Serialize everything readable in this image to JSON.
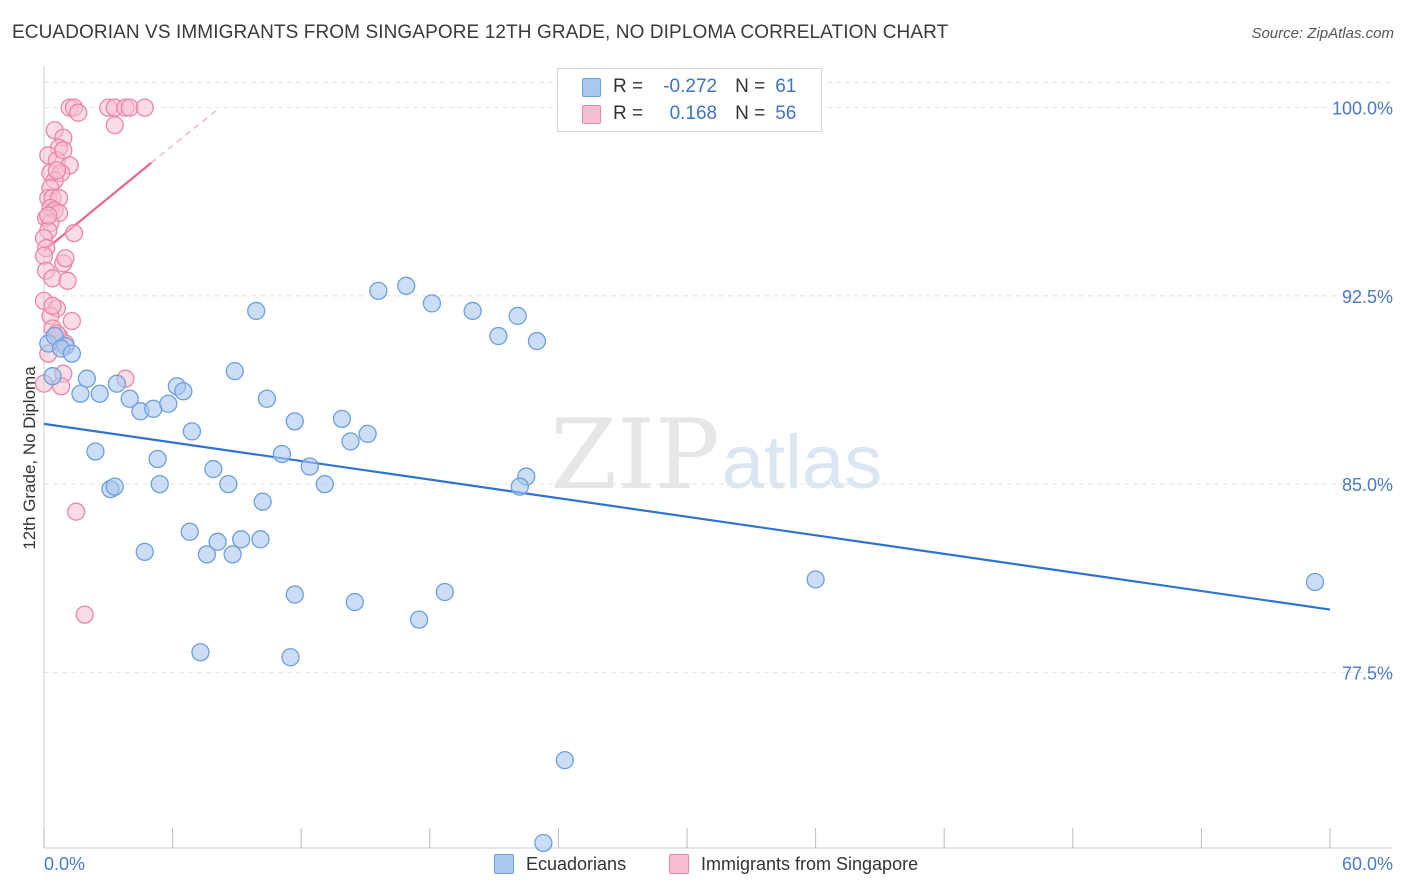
{
  "title": "ECUADORIAN VS IMMIGRANTS FROM SINGAPORE 12TH GRADE, NO DIPLOMA CORRELATION CHART",
  "source": "Source: ZipAtlas.com",
  "watermark": {
    "zip": "ZIP",
    "atlas": "atlas"
  },
  "legend": {
    "rows": [
      {
        "r_label": "R =",
        "r_value": "-0.272",
        "n_label": "N =",
        "n_value": "61"
      },
      {
        "r_label": "R =",
        "r_value": "0.168",
        "n_label": "N =",
        "n_value": "56"
      }
    ]
  },
  "bottom_legend": {
    "series1": "Ecuadorians",
    "series2": "Immigrants from Singapore"
  },
  "colors": {
    "blue_fill": "#a8c8f0",
    "blue_stroke": "#6d9fdc",
    "blue_line": "#2f72cf",
    "pink_fill": "#f6bfd0",
    "pink_stroke": "#ec86a6",
    "pink_line": "#e8658e",
    "tick_label": "#4a7bc6",
    "grid": "#e3e3e3"
  },
  "chart_data": {
    "type": "scatter",
    "title": "ECUADORIAN VS IMMIGRANTS FROM SINGAPORE 12TH GRADE, NO DIPLOMA CORRELATION CHART",
    "xlabel": "",
    "ylabel": "12th Grade, No Diploma",
    "xlim": [
      0,
      60
    ],
    "ylim": [
      70.5,
      101.5
    ],
    "x_tick_labels": [
      "0.0%",
      "60.0%"
    ],
    "y_ticks": [
      77.5,
      85.0,
      92.5,
      100.0
    ],
    "y_tick_labels": [
      "77.5%",
      "85.0%",
      "92.5%",
      "100.0%"
    ],
    "grid": true,
    "legend_position": "top-center",
    "series": [
      {
        "name": "Ecuadorians",
        "R": -0.272,
        "N": 61,
        "trend": {
          "x": [
            0,
            60
          ],
          "y": [
            87.4,
            80.0
          ]
        },
        "points": [
          [
            0.2,
            90.6
          ],
          [
            0.5,
            90.9
          ],
          [
            1.0,
            90.5
          ],
          [
            0.8,
            90.4
          ],
          [
            1.3,
            90.2
          ],
          [
            2.0,
            89.2
          ],
          [
            1.7,
            88.6
          ],
          [
            2.6,
            88.6
          ],
          [
            3.4,
            89.0
          ],
          [
            4.0,
            88.4
          ],
          [
            4.5,
            87.9
          ],
          [
            5.1,
            88.0
          ],
          [
            5.8,
            88.2
          ],
          [
            6.2,
            88.9
          ],
          [
            6.5,
            88.7
          ],
          [
            2.4,
            86.3
          ],
          [
            3.1,
            84.8
          ],
          [
            3.3,
            84.9
          ],
          [
            5.3,
            86.0
          ],
          [
            5.4,
            85.0
          ],
          [
            6.9,
            87.1
          ],
          [
            7.9,
            85.6
          ],
          [
            8.6,
            85.0
          ],
          [
            8.9,
            89.5
          ],
          [
            9.9,
            91.9
          ],
          [
            10.4,
            88.4
          ],
          [
            10.2,
            84.3
          ],
          [
            10.1,
            82.8
          ],
          [
            11.1,
            86.2
          ],
          [
            11.7,
            87.5
          ],
          [
            12.4,
            85.7
          ],
          [
            13.1,
            85.0
          ],
          [
            13.9,
            87.6
          ],
          [
            14.3,
            86.7
          ],
          [
            15.1,
            87.0
          ],
          [
            15.6,
            92.7
          ],
          [
            16.9,
            92.9
          ],
          [
            18.1,
            92.2
          ],
          [
            20.0,
            91.9
          ],
          [
            21.2,
            90.9
          ],
          [
            22.1,
            91.7
          ],
          [
            23.0,
            90.7
          ],
          [
            4.7,
            82.3
          ],
          [
            6.8,
            83.1
          ],
          [
            8.1,
            82.7
          ],
          [
            7.6,
            82.2
          ],
          [
            9.2,
            82.8
          ],
          [
            8.8,
            82.2
          ],
          [
            11.7,
            80.6
          ],
          [
            14.5,
            80.3
          ],
          [
            17.5,
            79.6
          ],
          [
            18.7,
            80.7
          ],
          [
            7.3,
            78.3
          ],
          [
            11.5,
            78.1
          ],
          [
            22.5,
            85.3
          ],
          [
            22.2,
            84.9
          ],
          [
            24.3,
            74.0
          ],
          [
            23.3,
            70.7
          ],
          [
            36.0,
            81.2
          ],
          [
            59.3,
            81.1
          ],
          [
            0.4,
            89.3
          ]
        ]
      },
      {
        "name": "Immigrants from Singapore",
        "R": 0.168,
        "N": 56,
        "trend": {
          "x": [
            0,
            5.0
          ],
          "y": [
            94.3,
            97.8
          ]
        },
        "trend_extension": {
          "x": [
            5.0,
            8.2
          ],
          "y": [
            97.8,
            100.0
          ]
        },
        "points": [
          [
            1.2,
            100.0
          ],
          [
            1.4,
            100.0
          ],
          [
            1.6,
            99.8
          ],
          [
            3.0,
            100.0
          ],
          [
            3.3,
            100.0
          ],
          [
            3.8,
            100.0
          ],
          [
            4.0,
            100.0
          ],
          [
            4.7,
            100.0
          ],
          [
            3.3,
            99.3
          ],
          [
            0.5,
            99.1
          ],
          [
            0.9,
            98.8
          ],
          [
            0.7,
            98.4
          ],
          [
            0.2,
            98.1
          ],
          [
            0.6,
            97.9
          ],
          [
            1.2,
            97.7
          ],
          [
            0.3,
            97.4
          ],
          [
            0.8,
            97.4
          ],
          [
            0.5,
            97.1
          ],
          [
            0.3,
            96.8
          ],
          [
            0.2,
            96.4
          ],
          [
            0.4,
            96.4
          ],
          [
            0.7,
            96.4
          ],
          [
            0.3,
            96.0
          ],
          [
            0.5,
            95.9
          ],
          [
            0.7,
            95.8
          ],
          [
            0.1,
            95.6
          ],
          [
            0.3,
            95.4
          ],
          [
            0.2,
            95.1
          ],
          [
            1.4,
            95.0
          ],
          [
            0.0,
            94.8
          ],
          [
            0.1,
            94.4
          ],
          [
            0.0,
            94.1
          ],
          [
            0.9,
            93.8
          ],
          [
            0.1,
            93.5
          ],
          [
            0.4,
            93.2
          ],
          [
            1.1,
            93.1
          ],
          [
            0.0,
            92.3
          ],
          [
            0.6,
            92.0
          ],
          [
            0.3,
            91.7
          ],
          [
            1.3,
            91.5
          ],
          [
            0.4,
            91.2
          ],
          [
            0.7,
            90.9
          ],
          [
            1.0,
            90.6
          ],
          [
            0.9,
            89.4
          ],
          [
            3.8,
            89.2
          ],
          [
            0.8,
            88.9
          ],
          [
            1.5,
            83.9
          ],
          [
            1.9,
            79.8
          ],
          [
            0.0,
            89.0
          ],
          [
            0.2,
            90.2
          ],
          [
            0.6,
            91.0
          ],
          [
            0.9,
            98.3
          ],
          [
            0.6,
            97.5
          ],
          [
            0.2,
            95.7
          ],
          [
            1.0,
            94.0
          ],
          [
            0.4,
            92.1
          ]
        ]
      }
    ]
  }
}
